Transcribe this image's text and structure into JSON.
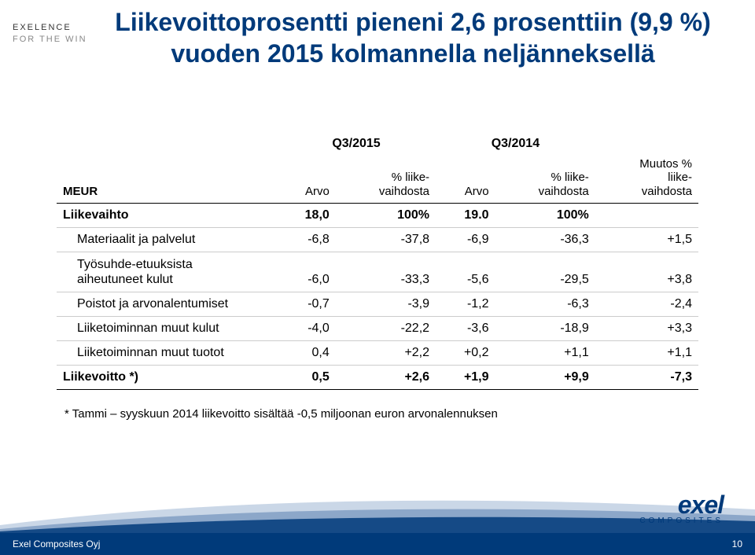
{
  "logo": {
    "line1": "EXELENCE",
    "line2": "FOR THE WIN"
  },
  "title": "Liikevoittoprosentti pieneni 2,6 prosenttiin (9,9 %) vuoden 2015 kolmannella neljänneksellä",
  "table": {
    "header": {
      "rowLabel": "MEUR",
      "period1": "Q3/2015",
      "period2": "Q3/2014",
      "arvo": "Arvo",
      "pctLv": "% liike-\nvaihdosta",
      "muutos": "Muutos %\nliike-\nvaihdosta"
    },
    "rows": [
      {
        "label": "Liikevaihto",
        "bold": true,
        "indent": false,
        "c": [
          "18,0",
          "100%",
          "19.0",
          "100%",
          ""
        ]
      },
      {
        "label": "Materiaalit ja palvelut",
        "bold": false,
        "indent": true,
        "c": [
          "-6,8",
          "-37,8",
          "-6,9",
          "-36,3",
          "+1,5"
        ]
      },
      {
        "label": "Työsuhde-etuuksista\naiheutuneet kulut",
        "bold": false,
        "indent": true,
        "twoRow": true,
        "c": [
          "-6,0",
          "-33,3",
          "-5,6",
          "-29,5",
          "+3,8"
        ]
      },
      {
        "label": "Poistot ja arvonalentumiset",
        "bold": false,
        "indent": true,
        "c": [
          "-0,7",
          "-3,9",
          "-1,2",
          "-6,3",
          "-2,4"
        ]
      },
      {
        "label": "Liiketoiminnan muut kulut",
        "bold": false,
        "indent": true,
        "c": [
          "-4,0",
          "-22,2",
          "-3,6",
          "-18,9",
          "+3,3"
        ]
      },
      {
        "label": "Liiketoiminnan muut tuotot",
        "bold": false,
        "indent": true,
        "c": [
          "0,4",
          "+2,2",
          "+0,2",
          "+1,1",
          "+1,1"
        ]
      },
      {
        "label": "Liikevoitto *)",
        "bold": true,
        "indent": false,
        "last": true,
        "c": [
          "0,5",
          "+2,6",
          "+1,9",
          "+9,9",
          "-7,3"
        ]
      }
    ]
  },
  "footnote": "* Tammi – syyskuun 2014 liikevoitto sisältää -0,5 miljoonan euron arvonalennuksen",
  "footer": {
    "company": "Exel Composites Oyj",
    "page": "10"
  },
  "brand": {
    "name": "exel",
    "sub": "COMPOSITES"
  },
  "colors": {
    "primary": "#003a7a",
    "swooshLight": "#9fb7d4",
    "swooshMid": "#5a80b0"
  }
}
